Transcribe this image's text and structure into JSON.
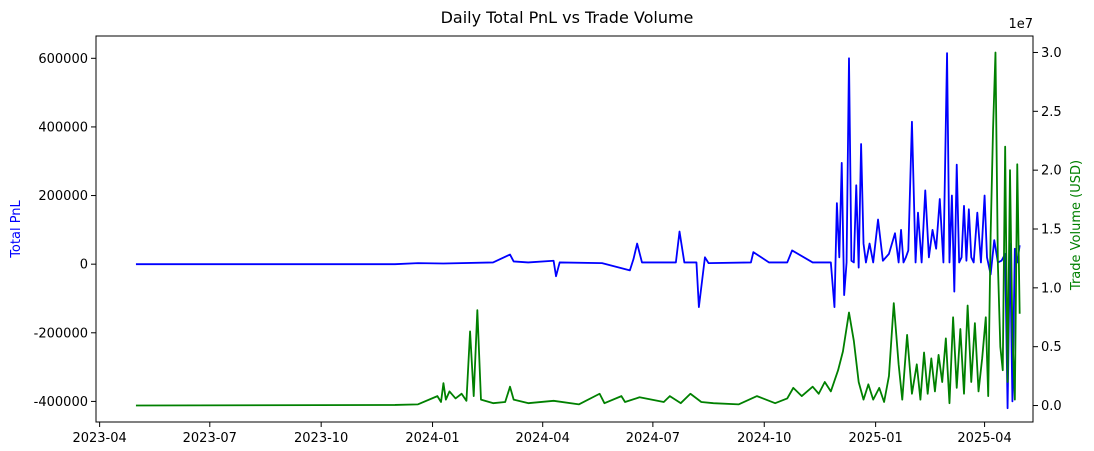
{
  "chart_data": {
    "type": "line",
    "title": "Daily Total PnL vs Trade Volume",
    "xlabel": "",
    "ylabel_left": "Total PnL",
    "ylabel_right": "Trade Volume (USD)",
    "right_axis_offset_text": "1e7",
    "x_axis_type": "date",
    "xlim": [
      "2023-03-29",
      "2025-05-11"
    ],
    "x_ticks": [
      "2023-04",
      "2023-07",
      "2023-10",
      "2024-01",
      "2024-04",
      "2024-07",
      "2024-10",
      "2025-01",
      "2025-04"
    ],
    "y_left_lim": [
      -460000,
      665000
    ],
    "y_left_ticks": [
      "-400000",
      "-200000",
      "0",
      "200000",
      "400000",
      "600000"
    ],
    "y_right_lim": [
      -1400000,
      31400000
    ],
    "y_right_ticks": [
      "0.0",
      "0.5",
      "1.0",
      "1.5",
      "2.0",
      "2.5",
      "3.0"
    ],
    "grid": false,
    "series": [
      {
        "name": "",
        "axis": "left",
        "color": "#0000ff",
        "x": [
          "2023-05-01",
          "2023-12-01",
          "2023-12-20",
          "2024-01-10",
          "2024-02-20",
          "2024-03-05",
          "2024-03-08",
          "2024-03-20",
          "2024-04-10",
          "2024-04-12",
          "2024-04-15",
          "2024-05-20",
          "2024-06-12",
          "2024-06-15",
          "2024-06-18",
          "2024-06-22",
          "2024-07-20",
          "2024-07-23",
          "2024-07-27",
          "2024-08-06",
          "2024-08-08",
          "2024-08-13",
          "2024-08-16",
          "2024-09-20",
          "2024-09-22",
          "2024-10-05",
          "2024-10-20",
          "2024-10-24",
          "2024-11-10",
          "2024-11-25",
          "2024-11-28",
          "2024-11-30",
          "2024-12-02",
          "2024-12-04",
          "2024-12-06",
          "2024-12-08",
          "2024-12-10",
          "2024-12-12",
          "2024-12-14",
          "2024-12-16",
          "2024-12-18",
          "2024-12-20",
          "2024-12-22",
          "2024-12-24",
          "2024-12-27",
          "2024-12-30",
          "2025-01-03",
          "2025-01-07",
          "2025-01-12",
          "2025-01-17",
          "2025-01-20",
          "2025-01-22",
          "2025-01-24",
          "2025-01-26",
          "2025-01-28",
          "2025-01-31",
          "2025-02-03",
          "2025-02-05",
          "2025-02-08",
          "2025-02-11",
          "2025-02-14",
          "2025-02-17",
          "2025-02-20",
          "2025-02-23",
          "2025-02-26",
          "2025-03-01",
          "2025-03-03",
          "2025-03-05",
          "2025-03-07",
          "2025-03-09",
          "2025-03-11",
          "2025-03-13",
          "2025-03-15",
          "2025-03-17",
          "2025-03-19",
          "2025-03-21",
          "2025-03-23",
          "2025-03-26",
          "2025-03-29",
          "2025-04-01",
          "2025-04-03",
          "2025-04-06",
          "2025-04-09",
          "2025-04-12",
          "2025-04-15",
          "2025-04-18",
          "2025-04-20",
          "2025-04-22",
          "2025-04-24",
          "2025-04-26",
          "2025-04-28",
          "2025-04-30"
        ],
        "y": [
          0,
          0,
          3000,
          2000,
          5000,
          28000,
          8000,
          5000,
          10000,
          -35000,
          5000,
          3000,
          -18000,
          15000,
          60000,
          5000,
          5000,
          95000,
          5000,
          5000,
          -125000,
          20000,
          3000,
          5000,
          35000,
          5000,
          5000,
          40000,
          5000,
          5000,
          -125000,
          178000,
          20000,
          295000,
          -90000,
          5000,
          600000,
          10000,
          5000,
          230000,
          -10000,
          350000,
          60000,
          5000,
          60000,
          5000,
          130000,
          10000,
          30000,
          90000,
          5000,
          100000,
          5000,
          20000,
          40000,
          415000,
          5000,
          150000,
          5000,
          215000,
          20000,
          100000,
          45000,
          190000,
          5000,
          615000,
          5000,
          200000,
          -80000,
          290000,
          5000,
          20000,
          170000,
          10000,
          160000,
          20000,
          5000,
          150000,
          5000,
          200000,
          20000,
          -30000,
          70000,
          5000,
          10000,
          30000,
          -420000,
          60000,
          -400000,
          45000,
          5000,
          55000
        ]
      },
      {
        "name": "",
        "axis": "right",
        "color": "#008000",
        "x": [
          "2023-05-01",
          "2023-12-01",
          "2023-12-20",
          "2024-01-05",
          "2024-01-08",
          "2024-01-10",
          "2024-01-12",
          "2024-01-15",
          "2024-01-20",
          "2024-01-25",
          "2024-01-29",
          "2024-02-01",
          "2024-02-04",
          "2024-02-07",
          "2024-02-10",
          "2024-02-20",
          "2024-03-01",
          "2024-03-05",
          "2024-03-08",
          "2024-03-20",
          "2024-04-10",
          "2024-05-01",
          "2024-05-18",
          "2024-05-22",
          "2024-06-05",
          "2024-06-08",
          "2024-06-20",
          "2024-07-10",
          "2024-07-15",
          "2024-07-24",
          "2024-08-01",
          "2024-08-10",
          "2024-08-20",
          "2024-09-10",
          "2024-09-25",
          "2024-10-10",
          "2024-10-20",
          "2024-10-25",
          "2024-11-01",
          "2024-11-10",
          "2024-11-15",
          "2024-11-20",
          "2024-11-25",
          "2024-12-01",
          "2024-12-05",
          "2024-12-10",
          "2024-12-14",
          "2024-12-18",
          "2024-12-22",
          "2024-12-26",
          "2024-12-30",
          "2025-01-04",
          "2025-01-08",
          "2025-01-12",
          "2025-01-16",
          "2025-01-20",
          "2025-01-23",
          "2025-01-27",
          "2025-01-31",
          "2025-02-04",
          "2025-02-07",
          "2025-02-10",
          "2025-02-13",
          "2025-02-16",
          "2025-02-19",
          "2025-02-22",
          "2025-02-25",
          "2025-02-28",
          "2025-03-03",
          "2025-03-06",
          "2025-03-09",
          "2025-03-12",
          "2025-03-15",
          "2025-03-18",
          "2025-03-21",
          "2025-03-24",
          "2025-03-27",
          "2025-03-30",
          "2025-04-02",
          "2025-04-04",
          "2025-04-06",
          "2025-04-08",
          "2025-04-10",
          "2025-04-12",
          "2025-04-14",
          "2025-04-16",
          "2025-04-18",
          "2025-04-20",
          "2025-04-22",
          "2025-04-24",
          "2025-04-26",
          "2025-04-28",
          "2025-04-30"
        ],
        "y": [
          0,
          50000,
          100000,
          800000,
          300000,
          1900000,
          500000,
          1200000,
          600000,
          1000000,
          400000,
          6300000,
          800000,
          8100000,
          500000,
          200000,
          300000,
          1600000,
          500000,
          200000,
          400000,
          100000,
          1000000,
          200000,
          800000,
          300000,
          700000,
          300000,
          800000,
          200000,
          1000000,
          300000,
          200000,
          100000,
          800000,
          200000,
          600000,
          1500000,
          800000,
          1600000,
          1000000,
          2000000,
          1200000,
          3000000,
          4600000,
          7900000,
          5500000,
          2000000,
          500000,
          1800000,
          500000,
          1500000,
          300000,
          2500000,
          8700000,
          3500000,
          500000,
          6000000,
          1000000,
          3500000,
          500000,
          4500000,
          1000000,
          4000000,
          1200000,
          4300000,
          2000000,
          5700000,
          200000,
          7500000,
          1500000,
          6500000,
          1000000,
          8500000,
          2000000,
          7000000,
          1200000,
          4000000,
          7500000,
          800000,
          14500000,
          23500000,
          30000000,
          12000000,
          5000000,
          3000000,
          22000000,
          2000000,
          20000000,
          6000000,
          500000,
          20500000,
          7800000
        ]
      }
    ]
  }
}
